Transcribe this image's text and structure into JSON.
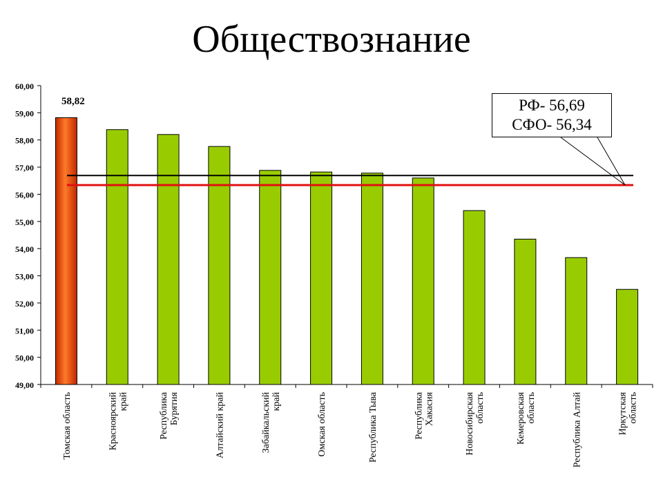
{
  "title": "Обществознание",
  "callout": {
    "rf_label": "РФ- 56,69",
    "sfo_label": "СФО- 56,34"
  },
  "chart_data": {
    "type": "bar",
    "title": "Обществознание",
    "xlabel": "",
    "ylabel": "",
    "ylim": [
      49,
      60
    ],
    "yticks": [
      "49,00",
      "50,00",
      "51,00",
      "52,00",
      "53,00",
      "54,00",
      "55,00",
      "56,00",
      "57,00",
      "58,00",
      "59,00",
      "60,00"
    ],
    "categories": [
      [
        "Томская область"
      ],
      [
        "Красноярский",
        "край"
      ],
      [
        "Республика",
        "Бурятия"
      ],
      [
        "Алтайский край"
      ],
      [
        "Забайкальский",
        "край"
      ],
      [
        "Омская область"
      ],
      [
        "Республика Тыва"
      ],
      [
        "Республика",
        "Хакасия"
      ],
      [
        "Новосибирская",
        "область"
      ],
      [
        "Кемеровская",
        "область"
      ],
      [
        "Республика Алтай"
      ],
      [
        "Иркутская",
        "область"
      ]
    ],
    "values": [
      58.82,
      58.38,
      58.2,
      57.76,
      56.88,
      56.82,
      56.78,
      56.6,
      55.4,
      54.35,
      53.67,
      52.5
    ],
    "data_labels": [
      {
        "index": 0,
        "text": "58,82"
      }
    ],
    "reference_lines": [
      {
        "name": "РФ",
        "value": 56.69,
        "color": "#000000"
      },
      {
        "name": "СФО",
        "value": 56.34,
        "color": "#e01010"
      }
    ],
    "colors": {
      "highlight_top": "#ff6a1a",
      "highlight_bottom": "#c02800",
      "bar": "#99cc00",
      "bar_border": "#000000"
    },
    "grid": false
  }
}
